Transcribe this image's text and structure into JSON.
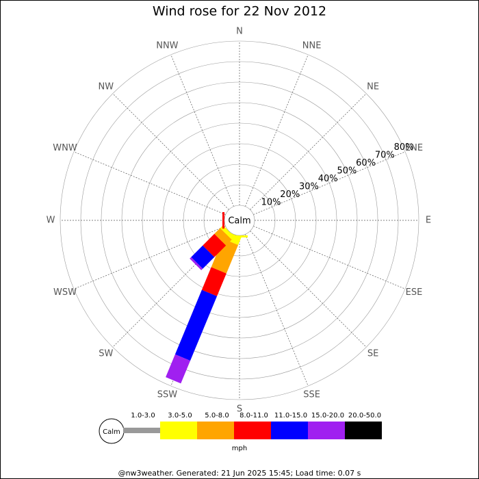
{
  "chart_data": {
    "type": "windrose",
    "title": "Wind rose for 22 Nov 2012",
    "categories": [
      "N",
      "NNE",
      "NE",
      "ENE",
      "E",
      "ESE",
      "SE",
      "SSE",
      "S",
      "SSW",
      "SW",
      "WSW",
      "W",
      "WNW",
      "NW",
      "NNW"
    ],
    "center_label": "Calm",
    "rlim": [
      0,
      80
    ],
    "rticks": [
      {
        "value": 10,
        "label": "10%"
      },
      {
        "value": 20,
        "label": "20%"
      },
      {
        "value": 30,
        "label": "30%"
      },
      {
        "value": 40,
        "label": "40%"
      },
      {
        "value": 50,
        "label": "50%"
      },
      {
        "value": 60,
        "label": "60%"
      },
      {
        "value": 70,
        "label": "70%"
      },
      {
        "value": 80,
        "label": "80%"
      }
    ],
    "series": [
      {
        "name": "1.0-3.0",
        "color": "#999999",
        "values": [
          0,
          0,
          0,
          0,
          0,
          0,
          0,
          0,
          0,
          0,
          0,
          0,
          0,
          0,
          0,
          0
        ]
      },
      {
        "name": "3.0-5.0",
        "color": "#ffff00",
        "values": [
          0,
          0,
          0,
          0,
          0,
          0,
          0,
          0,
          1,
          4,
          2,
          0,
          0,
          0,
          0,
          0
        ]
      },
      {
        "name": "5.0-8.0",
        "color": "#ffa500",
        "values": [
          0,
          0,
          0,
          0,
          0,
          0,
          0,
          0,
          0,
          15,
          4,
          0,
          0,
          0,
          0,
          0
        ]
      },
      {
        "name": "8.0-11.0",
        "color": "#ff0000",
        "values": [
          0,
          0,
          0,
          0,
          0,
          0,
          0,
          0,
          0,
          12,
          8,
          0,
          1,
          0,
          0,
          0
        ]
      },
      {
        "name": "11.0-15.0",
        "color": "#0000ff",
        "values": [
          0,
          0,
          0,
          0,
          0,
          0,
          0,
          0,
          0,
          34,
          8,
          0,
          0,
          0,
          0,
          0
        ]
      },
      {
        "name": "15.0-20.0",
        "color": "#a020f0",
        "values": [
          0,
          0,
          0,
          0,
          0,
          0,
          0,
          0,
          0,
          12,
          1,
          0,
          0,
          0,
          0,
          0
        ]
      },
      {
        "name": "20.0-50.0",
        "color": "#000000",
        "values": [
          0,
          0,
          0,
          0,
          0,
          0,
          0,
          0,
          0,
          0,
          0,
          0,
          0,
          0,
          0,
          0
        ]
      }
    ],
    "legend_unit": "mph",
    "footer": "@nw3weather. Generated: 21 Jun 2025 15:45; Load time: 0.07 s"
  }
}
